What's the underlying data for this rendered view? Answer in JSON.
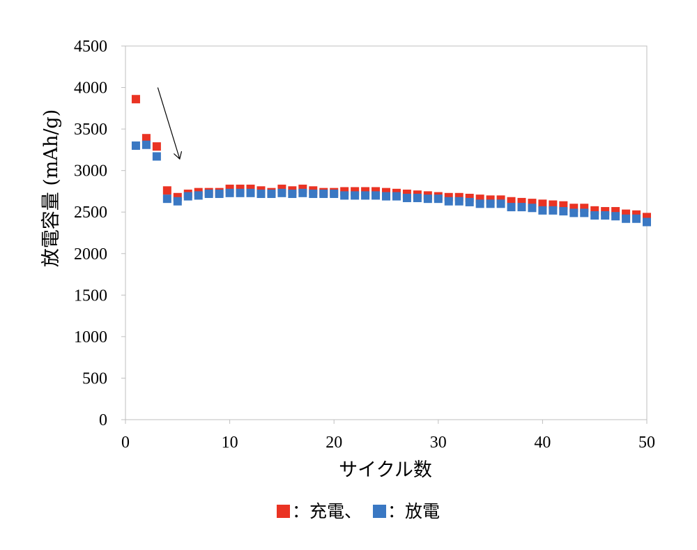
{
  "colors": {
    "charge": "#ea3323",
    "discharge": "#3a78c3",
    "grid": "#e0e0e0",
    "axis": "#bfbfbf"
  },
  "chart_data": {
    "type": "scatter",
    "title": "",
    "xlabel": "サイクル数",
    "ylabel": "放電容量 (mAh/g)",
    "xlim": [
      0,
      50
    ],
    "ylim": [
      0,
      4500
    ],
    "xticks": [
      "0",
      "10",
      "20",
      "30",
      "40",
      "50"
    ],
    "yticks": [
      "0",
      "500",
      "1000",
      "1500",
      "2000",
      "2500",
      "3000",
      "3500",
      "4000",
      "4500"
    ],
    "grid": false,
    "legend_position": "bottom",
    "legend": [
      {
        "marker_color": "#ea3323",
        "text": "：充電、"
      },
      {
        "marker_color": "#3a78c3",
        "text": "：放電"
      }
    ],
    "annotation": {
      "type": "arrow",
      "from": [
        3.1,
        4000
      ],
      "to": [
        5.2,
        3140
      ]
    },
    "series": [
      {
        "name": "充電",
        "color": "#ea3323",
        "x": [
          1,
          2,
          3,
          4,
          5,
          6,
          7,
          8,
          9,
          10,
          11,
          12,
          13,
          14,
          15,
          16,
          17,
          18,
          19,
          20,
          21,
          22,
          23,
          24,
          25,
          26,
          27,
          28,
          29,
          30,
          31,
          32,
          33,
          34,
          35,
          36,
          37,
          38,
          39,
          40,
          41,
          42,
          43,
          44,
          45,
          46,
          47,
          48,
          49,
          50
        ],
        "y": [
          3860,
          3390,
          3290,
          2760,
          2680,
          2720,
          2740,
          2740,
          2740,
          2780,
          2780,
          2780,
          2760,
          2740,
          2780,
          2760,
          2780,
          2760,
          2740,
          2740,
          2750,
          2750,
          2750,
          2750,
          2740,
          2730,
          2720,
          2710,
          2700,
          2690,
          2680,
          2680,
          2670,
          2660,
          2650,
          2650,
          2630,
          2620,
          2610,
          2600,
          2590,
          2580,
          2550,
          2550,
          2520,
          2510,
          2510,
          2480,
          2470,
          2440
        ]
      },
      {
        "name": "放電",
        "color": "#3a78c3",
        "x": [
          1,
          2,
          3,
          4,
          5,
          6,
          7,
          8,
          9,
          10,
          11,
          12,
          13,
          14,
          15,
          16,
          17,
          18,
          19,
          20,
          21,
          22,
          23,
          24,
          25,
          26,
          27,
          28,
          29,
          30,
          31,
          32,
          33,
          34,
          35,
          36,
          37,
          38,
          39,
          40,
          41,
          42,
          43,
          44,
          45,
          46,
          47,
          48,
          49,
          50
        ],
        "y": [
          3300,
          3310,
          3170,
          2660,
          2630,
          2690,
          2700,
          2720,
          2720,
          2730,
          2730,
          2730,
          2720,
          2720,
          2730,
          2720,
          2730,
          2720,
          2720,
          2720,
          2700,
          2700,
          2700,
          2700,
          2690,
          2690,
          2670,
          2670,
          2660,
          2660,
          2630,
          2630,
          2620,
          2600,
          2600,
          2600,
          2560,
          2560,
          2550,
          2520,
          2520,
          2510,
          2490,
          2490,
          2460,
          2460,
          2450,
          2420,
          2420,
          2380
        ]
      }
    ]
  }
}
